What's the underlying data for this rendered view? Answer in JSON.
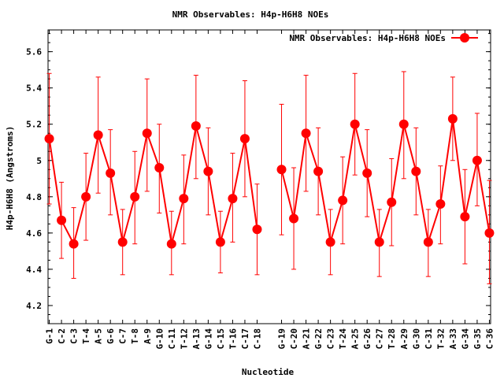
{
  "chart_data": {
    "type": "line",
    "title": "NMR Observables: H4p-H6H8 NOEs",
    "xlabel": "Nucleotide",
    "ylabel": "H4p-H6H8 (Angstroms)",
    "ylim": [
      4.1,
      5.72
    ],
    "yticks": [
      "4.2",
      "4.4",
      "4.6",
      "4.8",
      "5",
      "5.2",
      "5.4",
      "5.6"
    ],
    "grid": false,
    "legend": {
      "position": "top-right",
      "entries": [
        "NMR Observables: H4p-H6H8 NOEs"
      ]
    },
    "color": "#ff0000",
    "categories": [
      "G-1",
      "C-2",
      "C-3",
      "T-4",
      "A-5",
      "G-6",
      "C-7",
      "T-8",
      "A-9",
      "G-10",
      "C-11",
      "T-12",
      "A-13",
      "G-14",
      "C-15",
      "T-16",
      "C-17",
      "C-18",
      "G-19",
      "C-20",
      "A-21",
      "G-22",
      "C-23",
      "T-24",
      "A-25",
      "G-26",
      "C-27",
      "T-28",
      "A-29",
      "G-30",
      "C-31",
      "T-32",
      "A-33",
      "G-34",
      "G-35",
      "C-36"
    ],
    "x": [
      1,
      2,
      3,
      4,
      5,
      6,
      7,
      8,
      9,
      10,
      11,
      12,
      13,
      14,
      15,
      16,
      17,
      18,
      20,
      21,
      22,
      23,
      24,
      25,
      26,
      27,
      28,
      29,
      30,
      31,
      32,
      33,
      34,
      35,
      36,
      37
    ],
    "series": [
      {
        "name": "NMR Observables: H4p-H6H8 NOEs",
        "segments": [
          [
            0,
            18
          ],
          [
            18,
            36
          ]
        ],
        "values": [
          5.12,
          4.67,
          4.54,
          4.8,
          5.14,
          4.93,
          4.55,
          4.8,
          5.15,
          4.96,
          4.54,
          4.79,
          5.19,
          4.94,
          4.55,
          4.79,
          5.12,
          4.62,
          4.95,
          4.68,
          5.15,
          4.94,
          4.55,
          4.78,
          5.2,
          4.93,
          4.55,
          4.77,
          5.2,
          4.94,
          4.55,
          4.76,
          5.23,
          4.69,
          5.0,
          4.6
        ],
        "err_low": [
          4.76,
          4.46,
          4.35,
          4.56,
          4.82,
          4.7,
          4.37,
          4.54,
          4.83,
          4.71,
          4.37,
          4.54,
          4.9,
          4.7,
          4.38,
          4.55,
          4.8,
          4.37,
          4.59,
          4.4,
          4.83,
          4.7,
          4.37,
          4.54,
          4.92,
          4.69,
          4.36,
          4.53,
          4.9,
          4.7,
          4.36,
          4.54,
          5.0,
          4.43,
          4.75,
          4.32
        ],
        "err_high": [
          5.48,
          4.88,
          4.74,
          5.04,
          5.46,
          5.17,
          4.73,
          5.05,
          5.45,
          5.2,
          4.72,
          5.03,
          5.47,
          5.18,
          4.72,
          5.04,
          5.44,
          4.87,
          5.31,
          4.96,
          5.47,
          5.18,
          4.73,
          5.02,
          5.48,
          5.17,
          4.73,
          5.01,
          5.49,
          5.18,
          4.73,
          4.97,
          5.46,
          4.95,
          5.26,
          4.89
        ]
      }
    ]
  }
}
